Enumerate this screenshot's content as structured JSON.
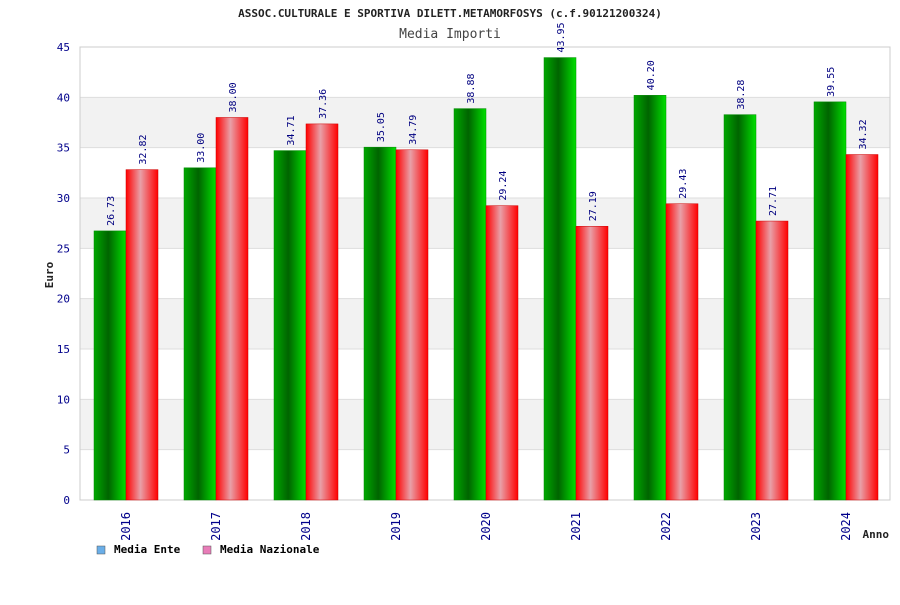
{
  "chart_data": {
    "type": "bar",
    "title": "ASSOC.CULTURALE E SPORTIVA DILETT.METAMORFOSYS (c.f.90121200324)",
    "subtitle": "Media Importi",
    "xlabel": "Anno",
    "ylabel": "Euro",
    "ylim": [
      0,
      45
    ],
    "ytick_step": 5,
    "grid": true,
    "legend_position": "bottom-left",
    "categories": [
      "2016",
      "2017",
      "2018",
      "2019",
      "2020",
      "2021",
      "2022",
      "2023",
      "2024"
    ],
    "series": [
      {
        "name": "Media Ente",
        "color": "#00c000",
        "legend_color": "#6aaee8",
        "values": [
          26.73,
          33.0,
          34.71,
          35.05,
          38.88,
          43.95,
          40.2,
          38.28,
          39.55
        ],
        "labels": [
          "26.73",
          "33.00",
          "34.71",
          "35.05",
          "38.88",
          "43.95",
          "40.20",
          "38.28",
          "39.55"
        ]
      },
      {
        "name": "Media Nazionale",
        "color": "#ff0000",
        "legend_color": "#e87cb8",
        "values": [
          32.82,
          38.0,
          37.36,
          34.79,
          29.24,
          27.19,
          29.43,
          27.71,
          34.32
        ],
        "labels": [
          "32.82",
          "38.00",
          "37.36",
          "34.79",
          "29.24",
          "27.19",
          "29.43",
          "27.71",
          "34.32"
        ]
      }
    ]
  }
}
